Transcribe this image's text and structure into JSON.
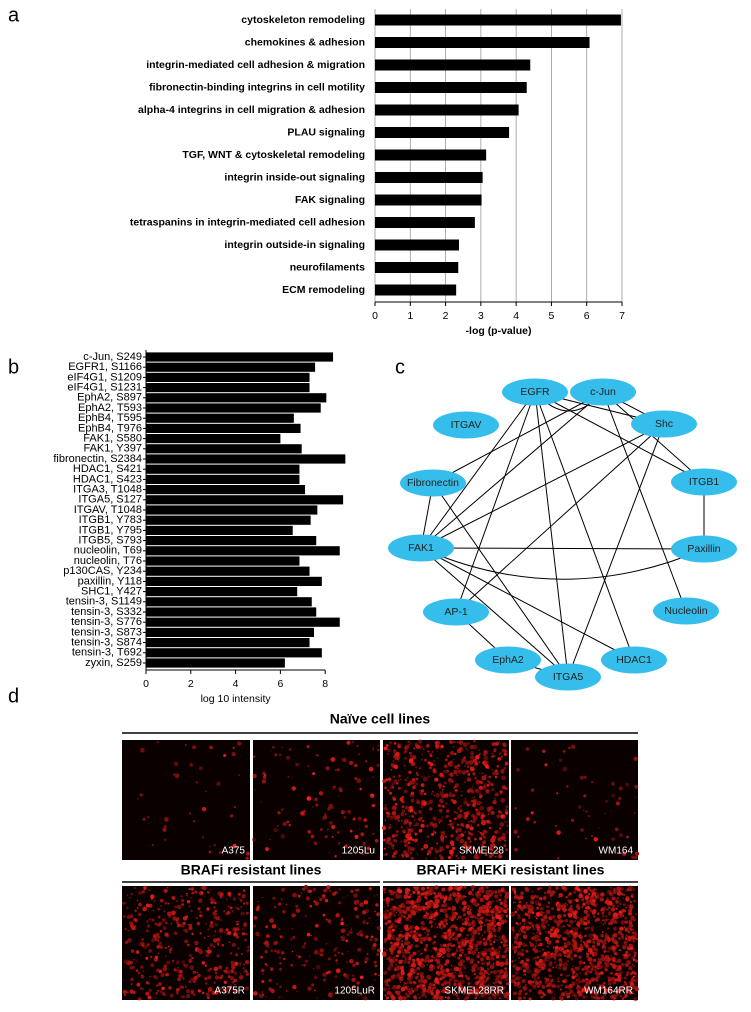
{
  "panel_labels": [
    "a",
    "b",
    "c",
    "d"
  ],
  "chart_data": [
    {
      "type": "bar",
      "orientation": "horizontal",
      "color": "#000000",
      "grid": true,
      "categories": [
        "cytoskeleton remodeling",
        "chemokines & adhesion",
        "integrin-mediated cell adhesion & migration",
        "fibronectin-binding integrins in cell motility",
        "alpha-4 integrins in cell migration & adhesion",
        "PLAU signaling",
        "TGF, WNT & cytoskeletal remodeling",
        "integrin inside-out signaling",
        "FAK signaling",
        "tetraspanins in integrin-mediated cell adhesion",
        "integrin outside-in signaling",
        "neurofilaments",
        "ECM remodeling"
      ],
      "values": [
        6.97,
        6.08,
        4.4,
        4.3,
        4.07,
        3.8,
        3.15,
        3.05,
        3.02,
        2.83,
        2.38,
        2.36,
        2.3
      ],
      "x_label": "-log (p-value)",
      "xlim": [
        0,
        7
      ],
      "xticks": [
        0,
        1,
        2,
        3,
        4,
        5,
        6,
        7
      ]
    },
    {
      "type": "bar",
      "orientation": "horizontal",
      "color": "#000000",
      "grid": false,
      "categories": [
        "c-Jun, S249",
        "EGFR1, S1166",
        "eIF4G1, S1209",
        "eIF4G1, S1231",
        "EphA2, S897",
        "EphA2, T593",
        "EphB4, T595",
        "EphB4, T976",
        "FAK1, S580",
        "FAK1, Y397",
        "fibronectin, S2384",
        "HDAC1, S421",
        "HDAC1, S423",
        "ITGA3, T1048",
        "ITGA5, S127",
        "ITGAV, T1048",
        "ITGB1, Y783",
        "ITGB1, Y795",
        "ITGB5, S793",
        "nucleolin, T69",
        "nucleolin, T76",
        "p130CAS, Y234",
        "paxillin, Y118",
        "SHC1, Y427",
        "tensin-3, S1149",
        "tensin-3, S332",
        "tensin-3, S776",
        "tensin-3, S873",
        "tensin-3, S874",
        "tensin-3, T692",
        "zyxin, S259"
      ],
      "values": [
        8.35,
        7.55,
        7.3,
        7.3,
        8.05,
        7.8,
        6.6,
        6.9,
        6.0,
        6.95,
        8.9,
        6.85,
        6.85,
        7.1,
        8.8,
        7.65,
        7.35,
        6.55,
        7.6,
        8.65,
        6.85,
        7.3,
        7.85,
        6.75,
        7.4,
        7.6,
        8.65,
        7.5,
        7.3,
        7.85,
        6.2
      ],
      "x_label": "log 10 intensity",
      "xlim": [
        0,
        9
      ],
      "xticks": [
        0,
        2,
        4,
        6,
        8
      ]
    }
  ],
  "network": {
    "nodes": [
      "EGFR",
      "c-Jun",
      "ITGAV",
      "Shc",
      "Fibronectin",
      "ITGB1",
      "FAK1",
      "Paxillin",
      "AP-1",
      "Nucleolin",
      "EphA2",
      "HDAC1",
      "ITGA5"
    ]
  },
  "micrographs": {
    "groups": [
      {
        "title": "Naïve cell lines",
        "labels": [
          "A375",
          "1205Lu",
          "SKMEL28",
          "WM164"
        ]
      },
      {
        "title": "BRAFi resistant lines",
        "labels": [
          "A375R",
          "1205LuR"
        ]
      },
      {
        "title": "BRAFi+ MEKi resistant lines",
        "labels": [
          "SKMEL28RR",
          "WM164RR"
        ]
      }
    ]
  }
}
